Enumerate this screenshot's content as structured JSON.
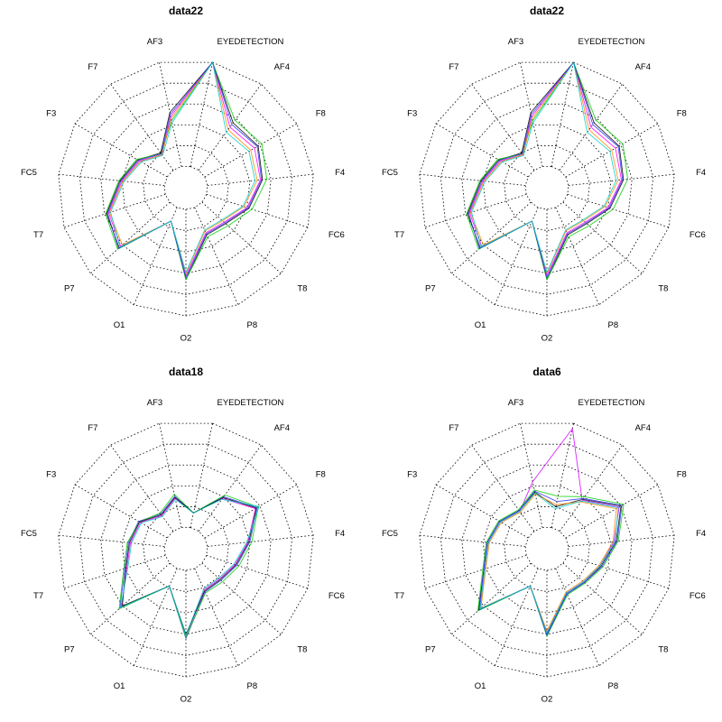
{
  "chart_data": [
    {
      "type": "radar",
      "title": "data22",
      "axes": [
        "EYEDETECTION",
        "AF4",
        "F8",
        "F4",
        "FC6",
        "T8",
        "P8",
        "O2",
        "O1",
        "P7",
        "T7",
        "FC5",
        "F3",
        "F7",
        "AF3"
      ],
      "rings": 5,
      "rlim": [
        0,
        1
      ],
      "grid": true,
      "series": [
        {
          "color": "#000000",
          "values": [
            1.0,
            0.55,
            0.58,
            0.52,
            0.42,
            0.3,
            0.28,
            0.66,
            0.14,
            0.64,
            0.58,
            0.42,
            0.32,
            0.2,
            0.52
          ]
        },
        {
          "color": "#ff00ff",
          "values": [
            1.0,
            0.5,
            0.54,
            0.5,
            0.4,
            0.28,
            0.26,
            0.62,
            0.14,
            0.62,
            0.56,
            0.4,
            0.3,
            0.18,
            0.48
          ]
        },
        {
          "color": "#00cc00",
          "values": [
            1.0,
            0.58,
            0.62,
            0.56,
            0.45,
            0.33,
            0.3,
            0.66,
            0.14,
            0.66,
            0.59,
            0.43,
            0.33,
            0.19,
            0.44
          ]
        },
        {
          "color": "#ff8800",
          "values": [
            1.0,
            0.47,
            0.5,
            0.47,
            0.37,
            0.26,
            0.24,
            0.6,
            0.14,
            0.6,
            0.55,
            0.39,
            0.29,
            0.18,
            0.46
          ]
        },
        {
          "color": "#3333ff",
          "values": [
            1.0,
            0.53,
            0.57,
            0.51,
            0.41,
            0.29,
            0.27,
            0.64,
            0.14,
            0.65,
            0.57,
            0.41,
            0.31,
            0.19,
            0.5
          ]
        },
        {
          "color": "#00cccc",
          "values": [
            1.0,
            0.44,
            0.48,
            0.45,
            0.36,
            0.25,
            0.23,
            0.59,
            0.14,
            0.63,
            0.54,
            0.38,
            0.28,
            0.17,
            0.42
          ]
        }
      ]
    },
    {
      "type": "radar",
      "title": "data22",
      "axes": [
        "EYEDETECTION",
        "AF4",
        "F8",
        "F4",
        "FC6",
        "T8",
        "P8",
        "O2",
        "O1",
        "P7",
        "T7",
        "FC5",
        "F3",
        "F7",
        "AF3"
      ],
      "rings": 5,
      "rlim": [
        0,
        1
      ],
      "grid": true,
      "series": [
        {
          "color": "#000000",
          "values": [
            1.0,
            0.55,
            0.58,
            0.52,
            0.42,
            0.3,
            0.28,
            0.66,
            0.14,
            0.64,
            0.58,
            0.42,
            0.32,
            0.2,
            0.52
          ]
        },
        {
          "color": "#ff00ff",
          "values": [
            1.0,
            0.5,
            0.54,
            0.5,
            0.4,
            0.28,
            0.26,
            0.62,
            0.14,
            0.62,
            0.56,
            0.4,
            0.3,
            0.18,
            0.48
          ]
        },
        {
          "color": "#00cc00",
          "values": [
            1.0,
            0.58,
            0.62,
            0.56,
            0.45,
            0.33,
            0.3,
            0.66,
            0.14,
            0.66,
            0.59,
            0.43,
            0.33,
            0.19,
            0.44
          ]
        },
        {
          "color": "#ff8800",
          "values": [
            1.0,
            0.47,
            0.5,
            0.47,
            0.37,
            0.26,
            0.24,
            0.6,
            0.14,
            0.6,
            0.55,
            0.39,
            0.29,
            0.18,
            0.46
          ]
        },
        {
          "color": "#3333ff",
          "values": [
            1.0,
            0.53,
            0.57,
            0.51,
            0.41,
            0.29,
            0.27,
            0.64,
            0.14,
            0.65,
            0.57,
            0.41,
            0.31,
            0.19,
            0.5
          ]
        },
        {
          "color": "#00cccc",
          "values": [
            1.0,
            0.44,
            0.48,
            0.45,
            0.36,
            0.25,
            0.23,
            0.59,
            0.14,
            0.63,
            0.54,
            0.38,
            0.28,
            0.17,
            0.42
          ]
        }
      ]
    },
    {
      "type": "radar",
      "title": "data18",
      "axes": [
        "EYEDETECTION",
        "AF4",
        "F8",
        "F4",
        "FC6",
        "T8",
        "P8",
        "O2",
        "O1",
        "P7",
        "T7",
        "FC5",
        "F3",
        "F7",
        "AF3"
      ],
      "rings": 5,
      "rlim": [
        0,
        1
      ],
      "grid": true,
      "series": [
        {
          "color": "#3333ff",
          "values": [
            0.14,
            0.4,
            0.57,
            0.4,
            0.3,
            0.24,
            0.24,
            0.64,
            0.18,
            0.63,
            0.4,
            0.34,
            0.31,
            0.2,
            0.3
          ]
        },
        {
          "color": "#ff00ff",
          "values": [
            0.14,
            0.38,
            0.55,
            0.38,
            0.28,
            0.22,
            0.22,
            0.62,
            0.18,
            0.61,
            0.38,
            0.32,
            0.29,
            0.18,
            0.28
          ]
        },
        {
          "color": "#00cc00",
          "values": [
            0.14,
            0.42,
            0.58,
            0.42,
            0.32,
            0.26,
            0.25,
            0.63,
            0.18,
            0.64,
            0.41,
            0.35,
            0.3,
            0.21,
            0.32
          ]
        },
        {
          "color": "#000000",
          "values": [
            0.14,
            0.39,
            0.56,
            0.39,
            0.29,
            0.23,
            0.23,
            0.6,
            0.18,
            0.6,
            0.39,
            0.33,
            0.3,
            0.19,
            0.29
          ]
        },
        {
          "color": "#00cccc",
          "values": [
            0.14,
            0.37,
            0.59,
            0.37,
            0.27,
            0.21,
            0.21,
            0.61,
            0.18,
            0.62,
            0.37,
            0.31,
            0.28,
            0.17,
            0.27
          ]
        }
      ]
    },
    {
      "type": "radar",
      "title": "data6",
      "axes": [
        "EYEDETECTION",
        "AF4",
        "F8",
        "F4",
        "FC6",
        "T8",
        "P8",
        "O2",
        "O1",
        "P7",
        "T7",
        "FC5",
        "F3",
        "F7",
        "AF3"
      ],
      "rings": 5,
      "rlim": [
        0,
        1
      ],
      "grid": true,
      "series": [
        {
          "color": "#000000",
          "values": [
            0.2,
            0.37,
            0.6,
            0.45,
            0.33,
            0.27,
            0.26,
            0.6,
            0.18,
            0.66,
            0.42,
            0.36,
            0.31,
            0.24,
            0.34
          ]
        },
        {
          "color": "#cc00ff",
          "values": [
            0.95,
            0.36,
            0.58,
            0.43,
            0.32,
            0.26,
            0.25,
            0.58,
            0.18,
            0.64,
            0.41,
            0.35,
            0.3,
            0.23,
            0.44
          ]
        },
        {
          "color": "#00cc00",
          "values": [
            0.3,
            0.4,
            0.63,
            0.47,
            0.35,
            0.28,
            0.27,
            0.62,
            0.18,
            0.67,
            0.43,
            0.37,
            0.32,
            0.25,
            0.36
          ]
        },
        {
          "color": "#ff8800",
          "values": [
            0.22,
            0.34,
            0.55,
            0.42,
            0.31,
            0.25,
            0.24,
            0.57,
            0.18,
            0.63,
            0.4,
            0.34,
            0.29,
            0.22,
            0.32
          ]
        },
        {
          "color": "#3333ff",
          "values": [
            0.25,
            0.38,
            0.61,
            0.46,
            0.34,
            0.27,
            0.26,
            0.61,
            0.18,
            0.65,
            0.42,
            0.36,
            0.31,
            0.24,
            0.35
          ]
        },
        {
          "color": "#00cccc",
          "values": [
            0.18,
            0.35,
            0.57,
            0.44,
            0.32,
            0.26,
            0.25,
            0.59,
            0.18,
            0.64,
            0.41,
            0.35,
            0.3,
            0.23,
            0.33
          ]
        }
      ]
    }
  ]
}
